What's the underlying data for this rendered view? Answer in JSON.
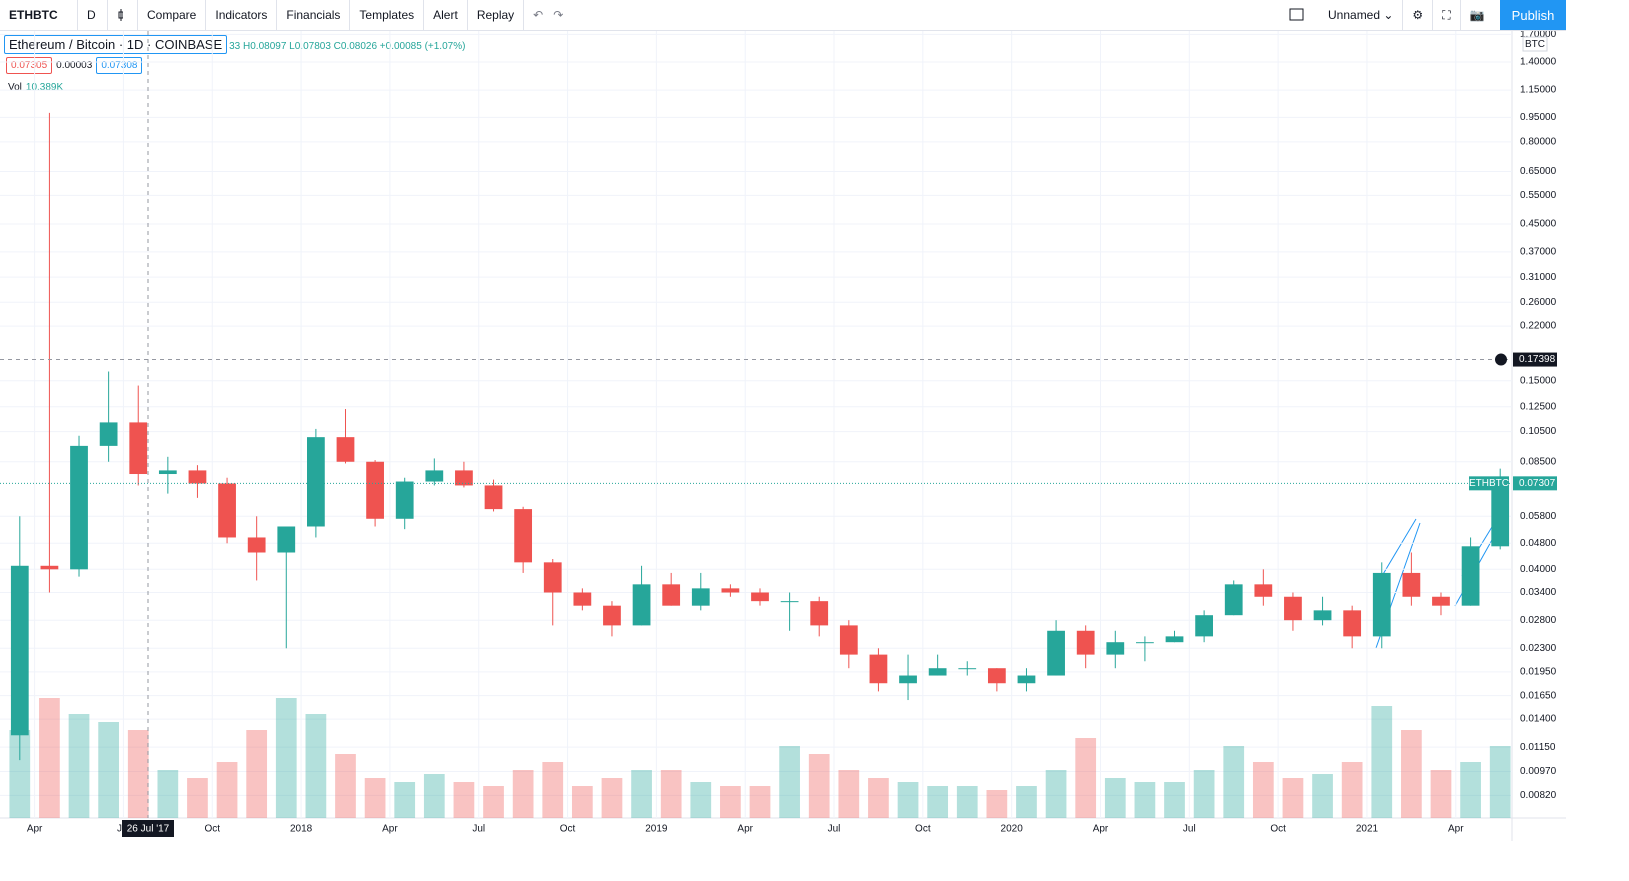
{
  "toolbar": {
    "symbol": "ETHBTC",
    "interval": "D",
    "buttons": [
      "Compare",
      "Indicators",
      "Financials",
      "Templates",
      "Alert",
      "Replay"
    ],
    "layout": "Unnamed",
    "publish": "Publish"
  },
  "legend": {
    "title": "Ethereum / Bitcoin · 1D · COINBASE",
    "ohlc": "33 H0.08097 L0.07803 C0.08026 +0.00085 (+1.07%)",
    "bid": "0.07305",
    "spread": "0.00003",
    "ask": "0.07308",
    "vol_label": "Vol",
    "vol_value": "10.389K"
  },
  "chart_data": {
    "type": "candlestick",
    "log_scale": true,
    "unit": "BTC",
    "up_color": "#26a69a",
    "down_color": "#ef5350",
    "categories": [
      null,
      "Apr",
      null,
      null,
      "Jul",
      null,
      null,
      "Oct",
      null,
      null,
      "2018",
      null,
      null,
      "Apr",
      null,
      null,
      "Jul",
      null,
      null,
      "Oct",
      null,
      null,
      "2019",
      null,
      null,
      "Apr",
      null,
      null,
      "Jul",
      null,
      null,
      "Oct",
      null,
      null,
      "2020",
      null,
      null,
      "Apr",
      null,
      null,
      "Jul",
      null,
      null,
      "Oct",
      null,
      null,
      "2021",
      null,
      null,
      "Apr",
      null
    ],
    "open": [
      0.0125,
      0.041,
      0.04,
      0.095,
      0.112,
      0.078,
      0.08,
      0.073,
      0.05,
      0.045,
      0.054,
      0.101,
      0.085,
      0.057,
      0.074,
      0.08,
      0.072,
      0.061,
      0.042,
      0.034,
      0.031,
      0.027,
      0.036,
      0.031,
      0.035,
      0.034,
      0.032,
      0.032,
      0.027,
      0.022,
      0.018,
      0.019,
      0.02,
      0.02,
      0.018,
      0.019,
      0.026,
      0.022,
      0.024,
      0.024,
      0.025,
      0.029,
      0.036,
      0.033,
      0.028,
      0.03,
      0.025,
      0.039,
      0.033,
      0.031,
      0.047
    ],
    "high": [
      0.058,
      0.98,
      0.102,
      0.16,
      0.145,
      0.088,
      0.083,
      0.076,
      0.058,
      0.052,
      0.107,
      0.123,
      0.086,
      0.076,
      0.087,
      0.085,
      0.075,
      0.062,
      0.043,
      0.035,
      0.032,
      0.041,
      0.039,
      0.039,
      0.036,
      0.035,
      0.034,
      0.033,
      0.028,
      0.023,
      0.022,
      0.022,
      0.021,
      0.02,
      0.02,
      0.028,
      0.027,
      0.026,
      0.025,
      0.026,
      0.03,
      0.037,
      0.04,
      0.034,
      0.033,
      0.031,
      0.042,
      0.045,
      0.034,
      0.05,
      0.081
    ],
    "low": [
      0.0105,
      0.034,
      0.038,
      0.085,
      0.072,
      0.068,
      0.066,
      0.048,
      0.037,
      0.023,
      0.05,
      0.084,
      0.054,
      0.053,
      0.072,
      0.071,
      0.06,
      0.039,
      0.027,
      0.03,
      0.025,
      0.027,
      0.031,
      0.03,
      0.033,
      0.031,
      0.026,
      0.025,
      0.02,
      0.017,
      0.016,
      0.019,
      0.019,
      0.017,
      0.017,
      0.019,
      0.02,
      0.02,
      0.021,
      0.024,
      0.024,
      0.029,
      0.031,
      0.026,
      0.027,
      0.023,
      0.023,
      0.031,
      0.029,
      0.031,
      0.046
    ],
    "close": [
      0.041,
      0.04,
      0.095,
      0.112,
      0.078,
      0.08,
      0.073,
      0.05,
      0.045,
      0.054,
      0.101,
      0.085,
      0.057,
      0.074,
      0.08,
      0.072,
      0.061,
      0.042,
      0.034,
      0.031,
      0.027,
      0.036,
      0.031,
      0.035,
      0.034,
      0.032,
      0.032,
      0.027,
      0.022,
      0.018,
      0.019,
      0.02,
      0.02,
      0.018,
      0.019,
      0.026,
      0.022,
      0.024,
      0.024,
      0.025,
      0.029,
      0.036,
      0.033,
      0.028,
      0.03,
      0.025,
      0.039,
      0.033,
      0.031,
      0.047,
      0.073
    ],
    "volume": [
      22,
      30,
      26,
      24,
      22,
      12,
      10,
      14,
      22,
      30,
      26,
      16,
      10,
      9,
      11,
      9,
      8,
      12,
      14,
      8,
      10,
      12,
      12,
      9,
      8,
      8,
      18,
      16,
      12,
      10,
      9,
      8,
      8,
      7,
      8,
      12,
      20,
      10,
      9,
      9,
      12,
      18,
      14,
      10,
      11,
      14,
      28,
      22,
      12,
      14,
      18
    ],
    "ylim": [
      0.007,
      1.74
    ],
    "yticks": [
      {
        "value": 1.7,
        "label": "1.70000"
      },
      {
        "value": 1.4,
        "label": "1.40000"
      },
      {
        "value": 1.15,
        "label": "1.15000"
      },
      {
        "value": 0.95,
        "label": "0.95000"
      },
      {
        "value": 0.8,
        "label": "0.80000"
      },
      {
        "value": 0.65,
        "label": "0.65000"
      },
      {
        "value": 0.55,
        "label": "0.55000"
      },
      {
        "value": 0.45,
        "label": "0.45000"
      },
      {
        "value": 0.37,
        "label": "0.37000"
      },
      {
        "value": 0.31,
        "label": "0.31000"
      },
      {
        "value": 0.26,
        "label": "0.26000"
      },
      {
        "value": 0.22,
        "label": "0.22000"
      },
      {
        "value": 0.15,
        "label": "0.15000"
      },
      {
        "value": 0.125,
        "label": "0.12500"
      },
      {
        "value": 0.105,
        "label": "0.10500"
      },
      {
        "value": 0.085,
        "label": "0.08500"
      },
      {
        "value": 0.058,
        "label": "0.05800"
      },
      {
        "value": 0.048,
        "label": "0.04800"
      },
      {
        "value": 0.04,
        "label": "0.04000"
      },
      {
        "value": 0.034,
        "label": "0.03400"
      },
      {
        "value": 0.028,
        "label": "0.02800"
      },
      {
        "value": 0.023,
        "label": "0.02300"
      },
      {
        "value": 0.0195,
        "label": "0.01950"
      },
      {
        "value": 0.0165,
        "label": "0.01650"
      },
      {
        "value": 0.014,
        "label": "0.01400"
      },
      {
        "value": 0.0115,
        "label": "0.01150"
      },
      {
        "value": 0.0097,
        "label": "0.00970"
      },
      {
        "value": 0.0082,
        "label": "0.00820"
      }
    ],
    "grid": true,
    "price_line": {
      "label": "ETHBTC",
      "value": 0.07307,
      "value_label": "0.07307"
    },
    "crosshair": {
      "value": 0.17398,
      "value_label": "0.17398",
      "date": "26 Jul '17"
    }
  }
}
